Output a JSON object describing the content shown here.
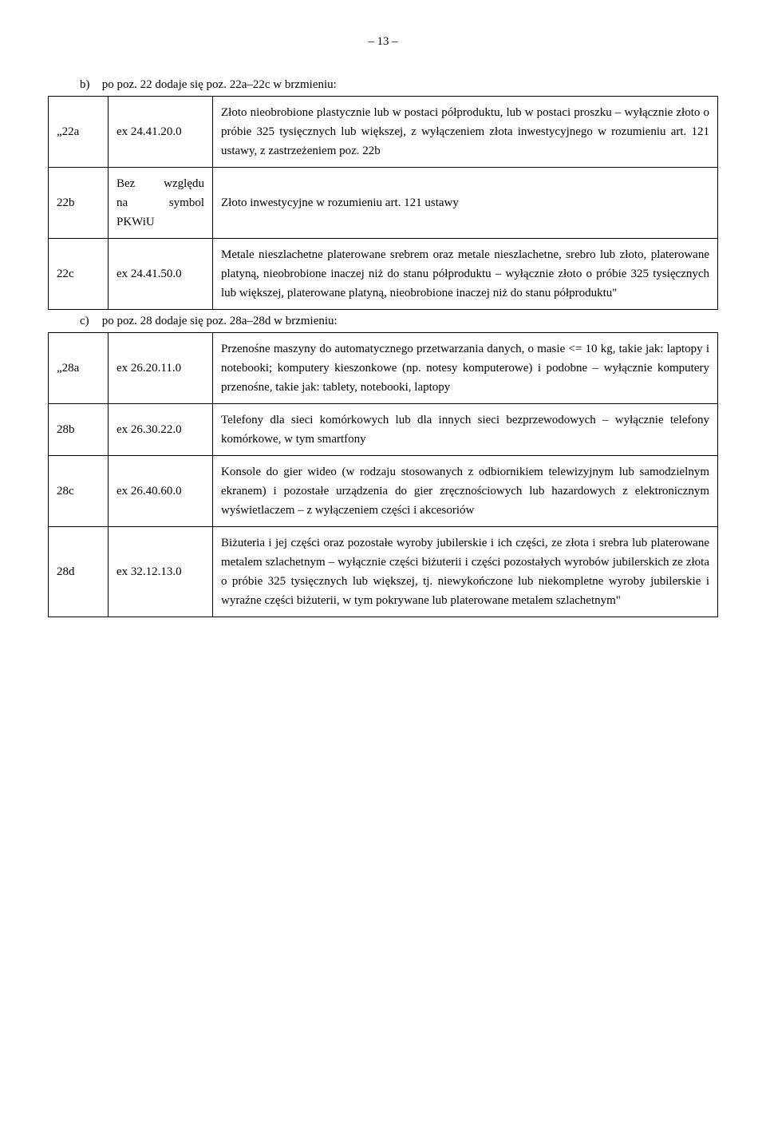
{
  "pageNumber": "– 13 –",
  "sectionB": {
    "label": "b)",
    "text": "po poz. 22 dodaje się poz. 22a–22c w brzmieniu:"
  },
  "table1": {
    "rows": [
      {
        "code": "„22a",
        "ex": "ex 24.41.20.0",
        "desc": "Złoto nieobrobione plastycznie lub w postaci półproduktu, lub w postaci proszku – wyłącznie złoto o próbie 325 tysięcznych lub większej, z wyłączeniem złota inwestycyjnego w rozumieniu art. 121 ustawy, z zastrzeżeniem poz. 22b"
      },
      {
        "code": "22b",
        "ex_line1": "Bez względu",
        "ex_line2": "na symbol",
        "ex_line3": "PKWiU",
        "desc": "Złoto inwestycyjne w rozumieniu art. 121 ustawy"
      },
      {
        "code": "22c",
        "ex": "ex 24.41.50.0",
        "desc": "Metale nieszlachetne platerowane srebrem oraz metale nieszlachetne, srebro lub złoto, platerowane platyną, nieobrobione inaczej niż do stanu półproduktu – wyłącznie złoto o próbie 325 tysięcznych lub większej, platerowane platyną, nieobrobione inaczej niż do stanu półproduktu\""
      }
    ]
  },
  "sectionC": {
    "label": "c)",
    "text": "po poz. 28 dodaje się poz. 28a–28d w brzmieniu:"
  },
  "table2": {
    "rows": [
      {
        "code": "„28a",
        "ex": "ex 26.20.11.0",
        "desc": "Przenośne maszyny do automatycznego przetwarzania danych, o masie <= 10 kg, takie jak: laptopy i notebooki; komputery kieszonkowe (np. notesy komputerowe) i podobne – wyłącznie komputery przenośne, takie jak: tablety, notebooki, laptopy"
      },
      {
        "code": "28b",
        "ex": "ex 26.30.22.0",
        "desc": "Telefony dla sieci komórkowych lub dla innych sieci bezprzewodowych – wyłącznie telefony komórkowe, w tym smartfony"
      },
      {
        "code": "28c",
        "ex": "ex 26.40.60.0",
        "desc": "Konsole do gier wideo (w rodzaju stosowanych z odbiornikiem telewizyjnym lub samodzielnym ekranem) i pozostałe urządzenia do gier zręcznościowych lub hazardowych z elektronicznym wyświetlaczem – z wyłączeniem części i akcesoriów"
      },
      {
        "code": "28d",
        "ex": "ex 32.12.13.0",
        "desc": "Biżuteria i jej części oraz pozostałe wyroby jubilerskie i ich części, ze złota i srebra lub platerowane metalem szlachetnym – wyłącznie części biżuterii i części pozostałych wyrobów jubilerskich ze złota o próbie 325 tysięcznych lub większej, tj. niewykończone lub niekompletne wyroby jubilerskie i wyraźne części biżuterii, w tym pokrywane lub platerowane metalem szlachetnym\""
      }
    ]
  }
}
